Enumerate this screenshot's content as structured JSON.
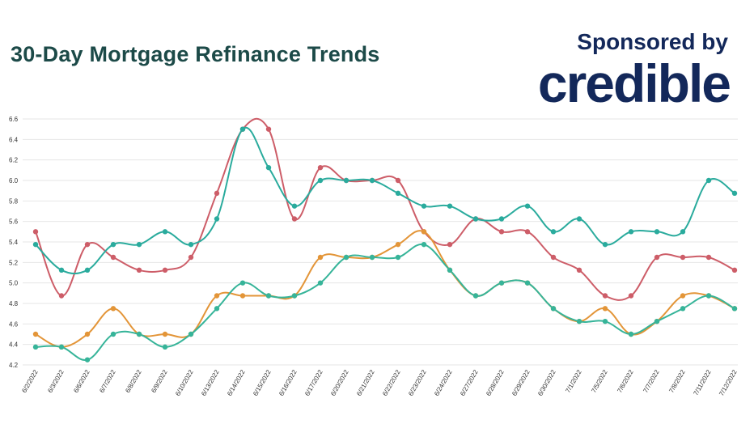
{
  "header": {
    "title": "30-Day Mortgage Refinance Trends",
    "sponsor_text": "Sponsored by",
    "brand_name": "credible"
  },
  "colors": {
    "red": "#cd5d68",
    "teal": "#2aab9d",
    "orange": "#e39538",
    "green": "#36b499",
    "grid": "#e6e6e6",
    "brand": "#13285a",
    "title": "#1c4a48"
  },
  "chart_data": {
    "type": "line",
    "title": "30-Day Mortgage Refinance Trends",
    "xlabel": "",
    "ylabel": "",
    "ylim": [
      4.2,
      6.6
    ],
    "y_ticks": [
      "4.2",
      "4.4",
      "4.6",
      "4.8",
      "5.0",
      "5.2",
      "5.4",
      "5.6",
      "5.8",
      "6.0",
      "6.2",
      "6.4",
      "6.6"
    ],
    "grid": true,
    "legend": "none",
    "categories": [
      "6/2/2022",
      "6/3/2022",
      "6/6/2022",
      "6/7/2022",
      "6/8/2022",
      "6/9/2022",
      "6/10/2022",
      "6/13/2022",
      "6/14/2022",
      "6/15/2022",
      "6/16/2022",
      "6/17/2022",
      "6/20/2022",
      "6/21/2022",
      "6/22/2022",
      "6/23/2022",
      "6/24/2022",
      "6/27/2022",
      "6/28/2022",
      "6/29/2022",
      "6/30/2022",
      "7/1/2022",
      "7/5/2022",
      "7/6/2022",
      "7/7/2022",
      "7/8/2022",
      "7/11/2022",
      "7/12/2022"
    ],
    "series": [
      {
        "color": "#cd5d68",
        "values": [
          5.5,
          4.875,
          5.375,
          5.25,
          5.125,
          5.125,
          5.25,
          5.875,
          6.5,
          6.5,
          5.625,
          6.125,
          6.0,
          6.0,
          6.0,
          5.5,
          5.375,
          5.625,
          5.5,
          5.5,
          5.25,
          5.125,
          4.875,
          4.875,
          5.25,
          5.25,
          5.25,
          5.125
        ]
      },
      {
        "color": "#2aab9d",
        "values": [
          5.375,
          5.125,
          5.125,
          5.375,
          5.375,
          5.5,
          5.375,
          5.625,
          6.5,
          6.125,
          5.75,
          6.0,
          6.0,
          6.0,
          5.875,
          5.75,
          5.75,
          5.625,
          5.625,
          5.75,
          5.5,
          5.625,
          5.375,
          5.5,
          5.5,
          5.5,
          6.0,
          5.875
        ]
      },
      {
        "color": "#e39538",
        "values": [
          4.5,
          4.375,
          4.5,
          4.75,
          4.5,
          4.5,
          4.5,
          4.875,
          4.875,
          4.875,
          4.875,
          5.25,
          5.25,
          5.25,
          5.375,
          5.5,
          5.125,
          4.875,
          5.0,
          5.0,
          4.75,
          4.625,
          4.75,
          4.5,
          4.625,
          4.875,
          4.875,
          4.75
        ]
      },
      {
        "color": "#36b499",
        "values": [
          4.375,
          4.375,
          4.25,
          4.5,
          4.5,
          4.375,
          4.5,
          4.75,
          5.0,
          4.875,
          4.875,
          5.0,
          5.25,
          5.25,
          5.25,
          5.375,
          5.125,
          4.875,
          5.0,
          5.0,
          4.75,
          4.625,
          4.625,
          4.5,
          4.625,
          4.75,
          4.875,
          4.75
        ]
      }
    ]
  }
}
